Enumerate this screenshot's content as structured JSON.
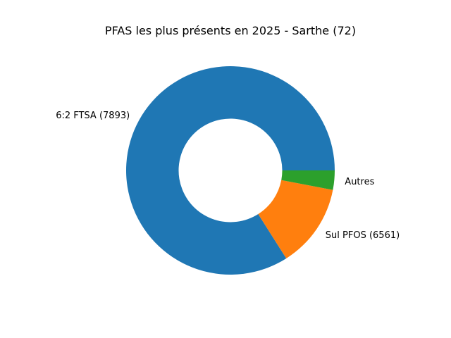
{
  "chart_data": {
    "type": "pie",
    "title": "PFAS les plus présents en 2025 - Sarthe (72)",
    "donut": true,
    "slices": [
      {
        "label": "6:2 FTSA (7893)",
        "value": 84,
        "color": "#1f77b4"
      },
      {
        "label": "Sul PFOS (6561)",
        "value": 13,
        "color": "#ff7f0e"
      },
      {
        "label": "Autres",
        "value": 3,
        "color": "#2ca02c"
      }
    ]
  }
}
